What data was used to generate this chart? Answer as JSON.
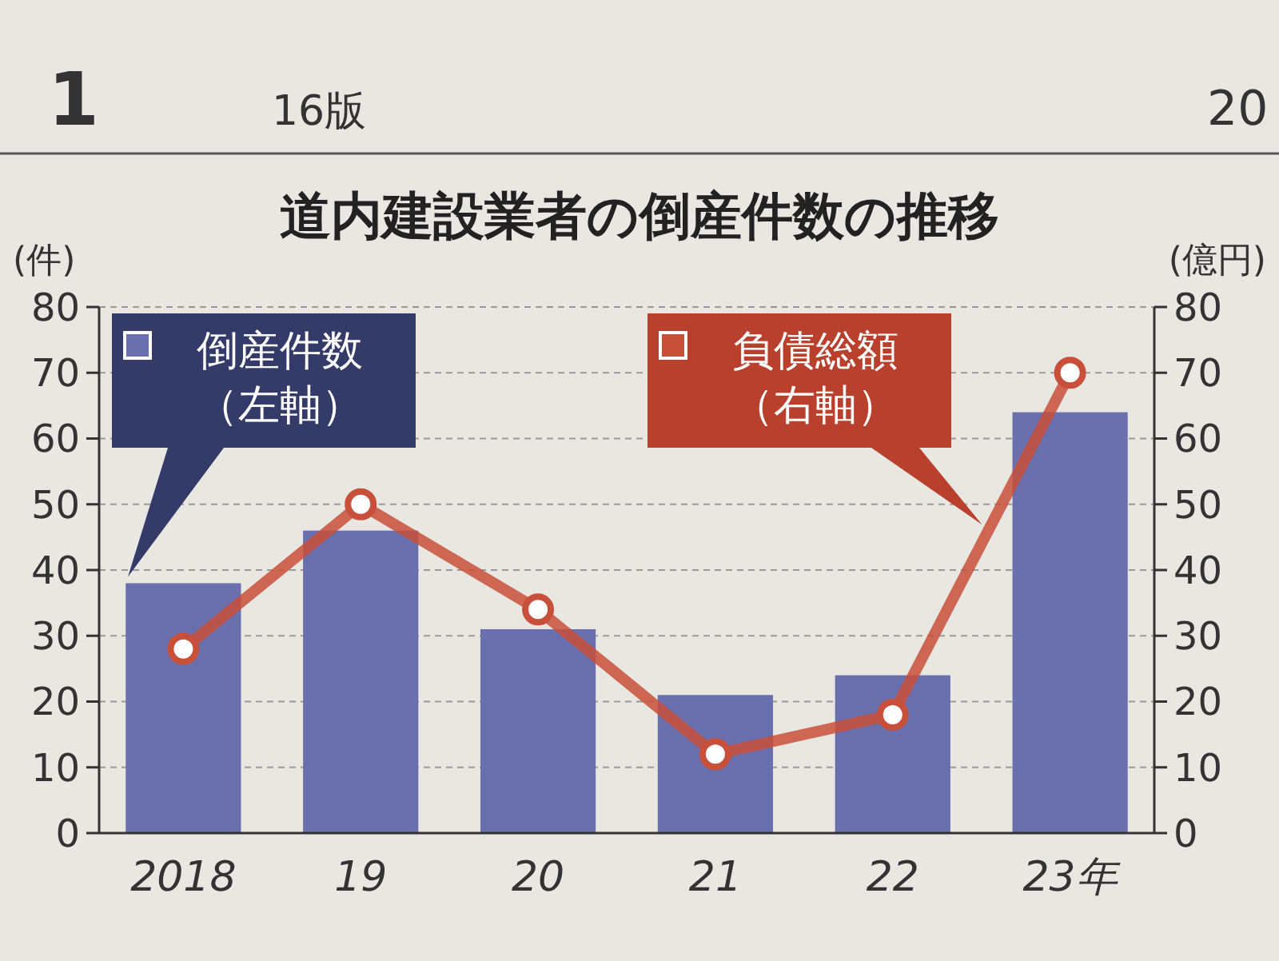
{
  "chart_data": {
    "type": "bar",
    "title": "道内建設業者の倒産件数の推移",
    "ylabel": "(件)",
    "y2label": "(億円)",
    "categories": [
      "2018",
      "19",
      "20",
      "21",
      "22",
      "23年"
    ],
    "series": [
      {
        "name": "倒産件数（左軸）",
        "type": "bar",
        "color": "#6a6fae",
        "values": [
          38,
          46,
          31,
          21,
          24,
          64
        ]
      },
      {
        "name": "負債総額（右軸）",
        "type": "line",
        "axis": "y2",
        "color": "#c8503a",
        "values": [
          28,
          50,
          34,
          12,
          18,
          70
        ]
      }
    ],
    "ylim": [
      0,
      80
    ],
    "yticks": [
      0,
      10,
      20,
      30,
      40,
      50,
      60,
      70,
      80
    ],
    "y2lim": [
      0,
      80
    ],
    "y2ticks": [
      0,
      10,
      20,
      30,
      40,
      50,
      60,
      70,
      80
    ],
    "grid": "y",
    "legend": "top",
    "marker": "circle",
    "line_style": "solid",
    "annotations": [
      "1",
      "16版",
      "20"
    ]
  }
}
